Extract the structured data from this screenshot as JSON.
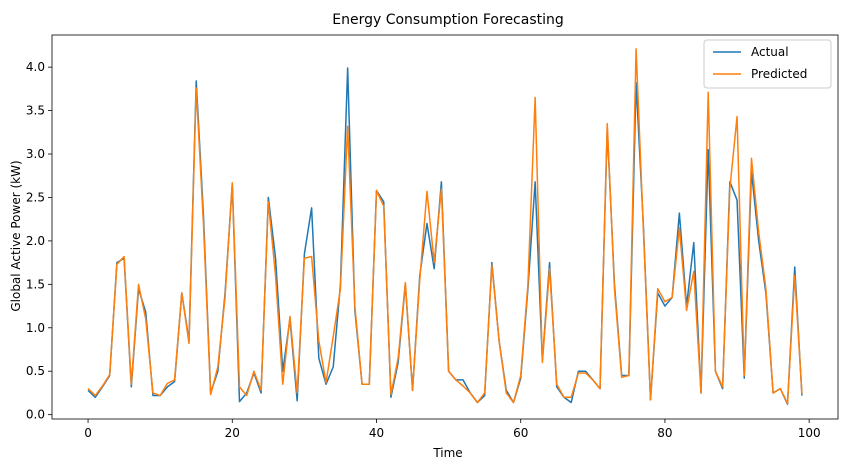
{
  "chart_data": {
    "type": "line",
    "title": "Energy Consumption Forecasting",
    "xlabel": "Time",
    "ylabel": "Global Active Power (kW)",
    "xlim": [
      -5,
      104
    ],
    "ylim": [
      -0.05,
      4.37
    ],
    "xticks": [
      0,
      20,
      40,
      60,
      80,
      100
    ],
    "xtick_labels": [
      "0",
      "20",
      "40",
      "60",
      "80",
      "100"
    ],
    "yticks": [
      0.0,
      0.5,
      1.0,
      1.5,
      2.0,
      2.5,
      3.0,
      3.5,
      4.0
    ],
    "ytick_labels": [
      "0.0",
      "0.5",
      "1.0",
      "1.5",
      "2.0",
      "2.5",
      "3.0",
      "3.5",
      "4.0"
    ],
    "grid": false,
    "legend_position": "top-right",
    "x": [
      0,
      1,
      2,
      3,
      4,
      5,
      6,
      7,
      8,
      9,
      10,
      11,
      12,
      13,
      14,
      15,
      16,
      17,
      18,
      19,
      20,
      21,
      22,
      23,
      24,
      25,
      26,
      27,
      28,
      29,
      30,
      31,
      32,
      33,
      34,
      35,
      36,
      37,
      38,
      39,
      40,
      41,
      42,
      43,
      44,
      45,
      46,
      47,
      48,
      49,
      50,
      51,
      52,
      53,
      54,
      55,
      56,
      57,
      58,
      59,
      60,
      61,
      62,
      63,
      64,
      65,
      66,
      67,
      68,
      69,
      70,
      71,
      72,
      73,
      74,
      75,
      76,
      77,
      78,
      79,
      80,
      81,
      82,
      83,
      84,
      85,
      86,
      87,
      88,
      89,
      90,
      91,
      92,
      93,
      94,
      95,
      96,
      97,
      98,
      99
    ],
    "series": [
      {
        "name": "Actual",
        "color": "#1f77b4",
        "values": [
          0.28,
          0.2,
          0.32,
          0.45,
          1.75,
          1.8,
          0.32,
          1.45,
          1.18,
          0.22,
          0.22,
          0.32,
          0.38,
          1.4,
          0.85,
          3.84,
          2.3,
          0.25,
          0.5,
          1.4,
          2.65,
          0.15,
          0.25,
          0.48,
          0.25,
          2.5,
          1.8,
          0.5,
          1.1,
          0.16,
          1.85,
          2.38,
          0.65,
          0.35,
          0.55,
          1.5,
          3.99,
          1.2,
          0.35,
          0.35,
          2.58,
          2.45,
          0.2,
          0.6,
          1.5,
          0.28,
          1.6,
          2.2,
          1.68,
          2.68,
          0.5,
          0.4,
          0.4,
          0.25,
          0.14,
          0.22,
          1.75,
          0.85,
          0.28,
          0.14,
          0.42,
          1.45,
          2.68,
          0.62,
          1.75,
          0.32,
          0.2,
          0.14,
          0.5,
          0.5,
          0.4,
          0.3,
          3.3,
          1.5,
          0.45,
          0.45,
          3.82,
          2.2,
          0.17,
          1.4,
          1.25,
          1.35,
          2.32,
          1.25,
          1.98,
          0.25,
          3.05,
          0.5,
          0.3,
          2.68,
          2.47,
          0.42,
          2.8,
          2.0,
          1.4,
          0.25,
          0.3,
          0.12,
          1.7,
          0.22
        ]
      },
      {
        "name": "Predicted",
        "color": "#ff7f0e",
        "values": [
          0.3,
          0.22,
          0.33,
          0.46,
          1.73,
          1.82,
          0.35,
          1.5,
          1.1,
          0.25,
          0.22,
          0.36,
          0.4,
          1.4,
          0.82,
          3.76,
          2.2,
          0.23,
          0.55,
          1.35,
          2.67,
          0.32,
          0.22,
          0.5,
          0.28,
          2.45,
          1.6,
          0.35,
          1.13,
          0.25,
          1.8,
          1.82,
          0.85,
          0.37,
          0.9,
          1.45,
          3.32,
          1.25,
          0.35,
          0.35,
          2.58,
          2.4,
          0.23,
          0.65,
          1.52,
          0.28,
          1.55,
          2.57,
          1.75,
          2.6,
          0.5,
          0.4,
          0.33,
          0.25,
          0.14,
          0.25,
          1.72,
          0.85,
          0.25,
          0.14,
          0.45,
          1.5,
          3.65,
          0.6,
          1.68,
          0.35,
          0.2,
          0.2,
          0.48,
          0.48,
          0.4,
          0.3,
          3.35,
          1.45,
          0.43,
          0.45,
          4.21,
          2.15,
          0.17,
          1.45,
          1.3,
          1.35,
          2.15,
          1.2,
          1.65,
          0.25,
          3.71,
          0.5,
          0.32,
          2.6,
          3.43,
          0.45,
          2.95,
          2.1,
          1.45,
          0.25,
          0.3,
          0.13,
          1.6,
          0.24
        ]
      }
    ]
  }
}
